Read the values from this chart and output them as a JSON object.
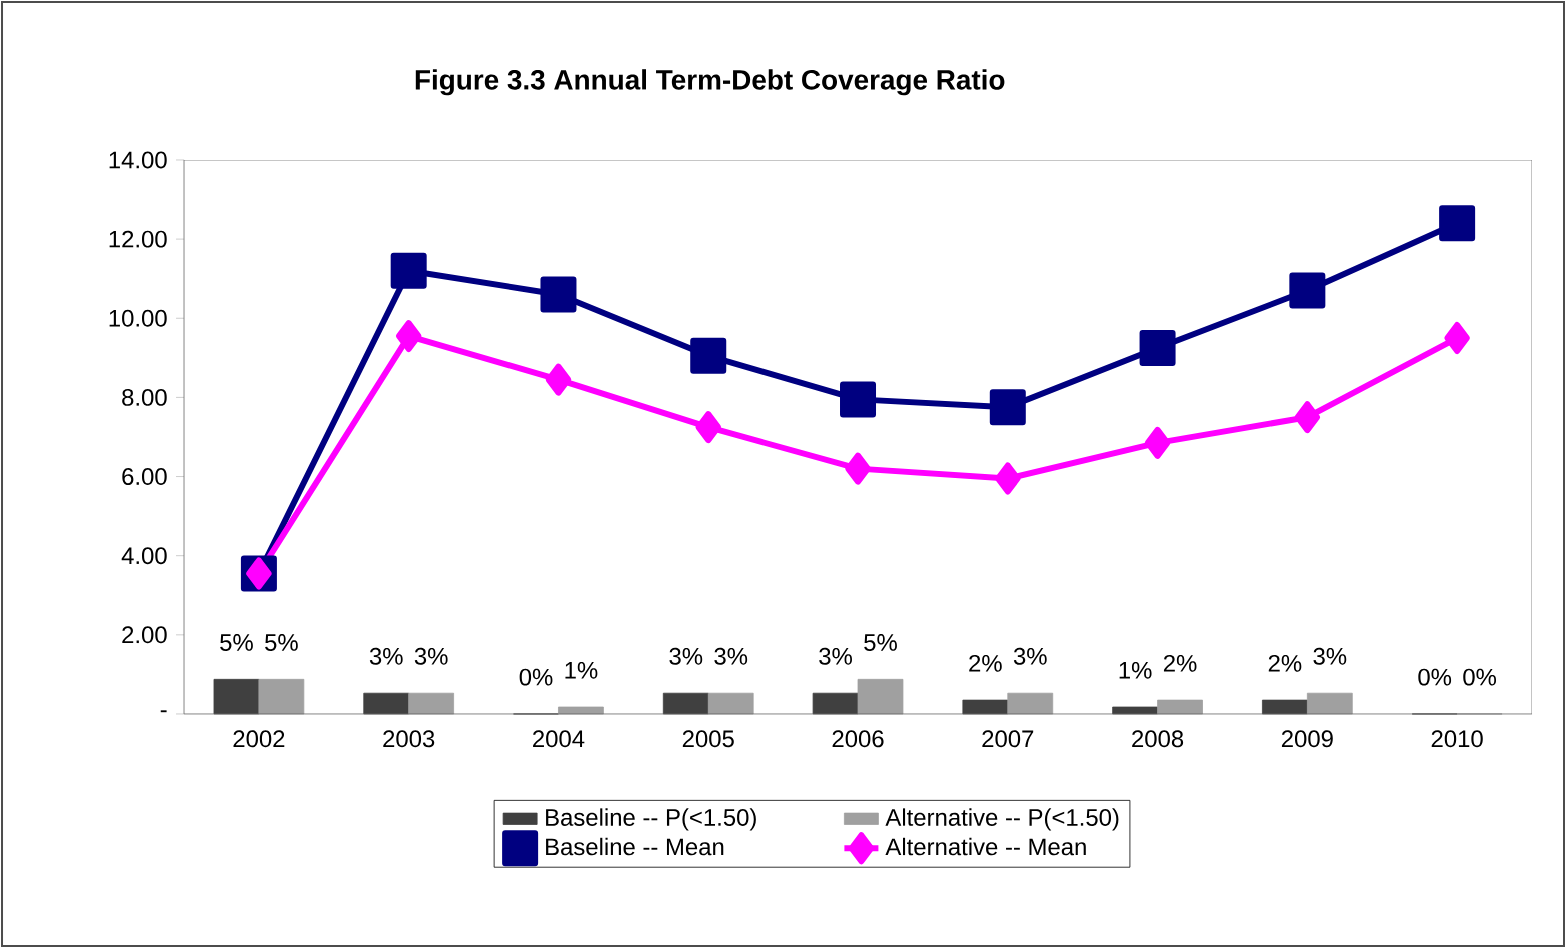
{
  "chart_data": {
    "type": "line",
    "title": "Figure 3.3  Annual Term-Debt Coverage Ratio",
    "categories": [
      "2002",
      "2003",
      "2004",
      "2005",
      "2006",
      "2007",
      "2008",
      "2009",
      "2010"
    ],
    "series": [
      {
        "name": "Baseline -- P(<1.50)",
        "type": "bar",
        "axis": "y2",
        "color": "#404040",
        "values": [
          5,
          3,
          0,
          3,
          3,
          2,
          1,
          2,
          0
        ],
        "value_labels": [
          "5%",
          "3%",
          "0%",
          "3%",
          "3%",
          "2%",
          "1%",
          "2%",
          "0%"
        ]
      },
      {
        "name": "Alternative -- P(<1.50)",
        "type": "bar",
        "axis": "y2",
        "color": "#a0a0a0",
        "values": [
          5,
          3,
          1,
          3,
          5,
          3,
          2,
          3,
          0
        ],
        "value_labels": [
          "5%",
          "3%",
          "1%",
          "3%",
          "5%",
          "3%",
          "2%",
          "3%",
          "0%"
        ]
      },
      {
        "name": "Baseline -- Mean",
        "marker": "square",
        "color": "#000080",
        "values": [
          3.55,
          11.2,
          10.6,
          9.05,
          7.95,
          7.75,
          9.25,
          10.7,
          12.4
        ]
      },
      {
        "name": "Alternative -- Mean",
        "marker": "diamond",
        "color": "#ff00ff",
        "values": [
          3.55,
          9.55,
          8.45,
          7.25,
          6.2,
          5.95,
          6.85,
          7.5,
          9.5
        ]
      }
    ],
    "ylim": [
      0,
      14
    ],
    "yticks": [
      {
        "value": 0,
        "label": "-"
      },
      {
        "value": 2,
        "label": "2.00"
      },
      {
        "value": 4,
        "label": "4.00"
      },
      {
        "value": 6,
        "label": "6.00"
      },
      {
        "value": 8,
        "label": "8.00"
      },
      {
        "value": 10,
        "label": "10.00"
      },
      {
        "value": 12,
        "label": "12.00"
      },
      {
        "value": 14,
        "label": "14.00"
      }
    ],
    "y2lim": [
      0,
      80
    ],
    "legend": "bottom",
    "grid": false
  }
}
